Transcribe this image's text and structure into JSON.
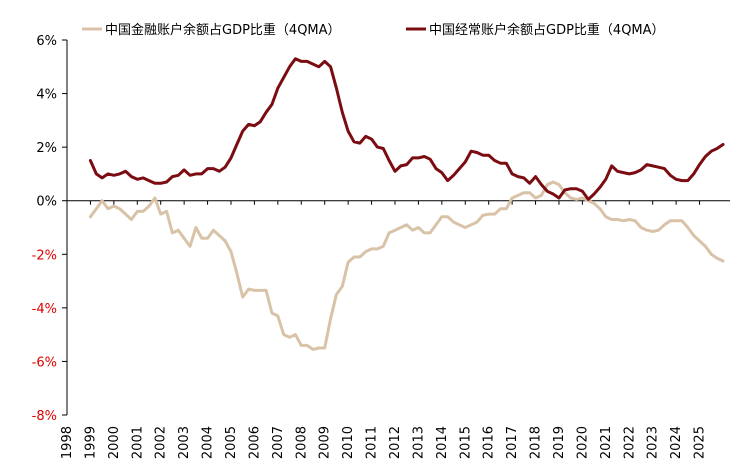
{
  "chart_data": {
    "type": "line",
    "legend_position": "top",
    "grid": false,
    "xlim": [
      1998,
      2026.3
    ],
    "ylim": [
      -8,
      6
    ],
    "y_ticks": [
      6,
      4,
      2,
      0,
      -2,
      -4,
      -6,
      -8
    ],
    "y_tick_labels": [
      "6%",
      "4%",
      "2%",
      "0%",
      "-2%",
      "-4%",
      "-6%",
      "-8%"
    ],
    "x_tick_labels": [
      "1998",
      "1999",
      "2000",
      "2001",
      "2002",
      "2003",
      "2004",
      "2005",
      "2006",
      "2007",
      "2008",
      "2009",
      "2010",
      "2011",
      "2012",
      "2013",
      "2014",
      "2015",
      "2016",
      "2017",
      "2018",
      "2019",
      "2020",
      "2021",
      "2022",
      "2023",
      "2024",
      "2025"
    ],
    "colors": {
      "financial": "#d9c3a8",
      "current": "#7a0c12",
      "negative_tick": "#e00000",
      "axis": "#000000"
    },
    "series": [
      {
        "name": "中国金融账户余额占GDP比重（4QMA）",
        "key": "financial",
        "x": [
          1999.0,
          1999.25,
          1999.5,
          1999.75,
          2000.0,
          2000.25,
          2000.5,
          2000.75,
          2001.0,
          2001.25,
          2001.5,
          2001.75,
          2002.0,
          2002.25,
          2002.5,
          2002.75,
          2003.0,
          2003.25,
          2003.5,
          2003.75,
          2004.0,
          2004.25,
          2004.5,
          2004.75,
          2005.0,
          2005.25,
          2005.5,
          2005.75,
          2006.0,
          2006.25,
          2006.5,
          2006.75,
          2007.0,
          2007.25,
          2007.5,
          2007.75,
          2008.0,
          2008.25,
          2008.5,
          2008.75,
          2009.0,
          2009.25,
          2009.5,
          2009.75,
          2010.0,
          2010.25,
          2010.5,
          2010.75,
          2011.0,
          2011.25,
          2011.5,
          2011.75,
          2012.0,
          2012.25,
          2012.5,
          2012.75,
          2013.0,
          2013.25,
          2013.5,
          2013.75,
          2014.0,
          2014.25,
          2014.5,
          2014.75,
          2015.0,
          2015.25,
          2015.5,
          2015.75,
          2016.0,
          2016.25,
          2016.5,
          2016.75,
          2017.0,
          2017.25,
          2017.5,
          2017.75,
          2018.0,
          2018.25,
          2018.5,
          2018.75,
          2019.0,
          2019.25,
          2019.5,
          2019.75,
          2020.0,
          2020.25,
          2020.5,
          2020.75,
          2021.0,
          2021.25,
          2021.5,
          2021.75,
          2022.0,
          2022.25,
          2022.5,
          2022.75,
          2023.0,
          2023.25,
          2023.5,
          2023.75,
          2024.0,
          2024.25,
          2024.5,
          2024.75,
          2025.0,
          2025.25,
          2025.5,
          2025.75,
          2026.0
        ],
        "values": [
          -0.6,
          -0.3,
          0.0,
          -0.3,
          -0.2,
          -0.3,
          -0.5,
          -0.7,
          -0.4,
          -0.4,
          -0.2,
          0.1,
          -0.5,
          -0.4,
          -1.2,
          -1.1,
          -1.4,
          -1.7,
          -1.0,
          -1.4,
          -1.4,
          -1.1,
          -1.3,
          -1.5,
          -1.9,
          -2.7,
          -3.6,
          -3.3,
          -3.35,
          -3.35,
          -3.35,
          -4.2,
          -4.3,
          -5.0,
          -5.1,
          -5.0,
          -5.4,
          -5.4,
          -5.55,
          -5.5,
          -5.5,
          -4.4,
          -3.5,
          -3.2,
          -2.3,
          -2.1,
          -2.1,
          -1.9,
          -1.8,
          -1.8,
          -1.7,
          -1.2,
          -1.1,
          -1.0,
          -0.9,
          -1.1,
          -1.0,
          -1.2,
          -1.2,
          -0.9,
          -0.6,
          -0.6,
          -0.8,
          -0.9,
          -1.0,
          -0.9,
          -0.8,
          -0.55,
          -0.5,
          -0.5,
          -0.3,
          -0.3,
          0.1,
          0.2,
          0.3,
          0.3,
          0.1,
          0.2,
          0.6,
          0.7,
          0.6,
          0.3,
          0.1,
          0.05,
          0.1,
          0.0,
          -0.1,
          -0.3,
          -0.6,
          -0.7,
          -0.7,
          -0.75,
          -0.7,
          -0.75,
          -1.0,
          -1.1,
          -1.15,
          -1.1,
          -0.9,
          -0.75,
          -0.75,
          -0.75,
          -1.0,
          -1.3,
          -1.5,
          -1.7,
          -2.0,
          -2.15,
          -2.25
        ]
      },
      {
        "name": "中国经常账户余额占GDP比重（4QMA）",
        "key": "current",
        "x": [
          1999.0,
          1999.25,
          1999.5,
          1999.75,
          2000.0,
          2000.25,
          2000.5,
          2000.75,
          2001.0,
          2001.25,
          2001.5,
          2001.75,
          2002.0,
          2002.25,
          2002.5,
          2002.75,
          2003.0,
          2003.25,
          2003.5,
          2003.75,
          2004.0,
          2004.25,
          2004.5,
          2004.75,
          2005.0,
          2005.25,
          2005.5,
          2005.75,
          2006.0,
          2006.25,
          2006.5,
          2006.75,
          2007.0,
          2007.25,
          2007.5,
          2007.75,
          2008.0,
          2008.25,
          2008.5,
          2008.75,
          2009.0,
          2009.25,
          2009.5,
          2009.75,
          2010.0,
          2010.25,
          2010.5,
          2010.75,
          2011.0,
          2011.25,
          2011.5,
          2011.75,
          2012.0,
          2012.25,
          2012.5,
          2012.75,
          2013.0,
          2013.25,
          2013.5,
          2013.75,
          2014.0,
          2014.25,
          2014.5,
          2014.75,
          2015.0,
          2015.25,
          2015.5,
          2015.75,
          2016.0,
          2016.25,
          2016.5,
          2016.75,
          2017.0,
          2017.25,
          2017.5,
          2017.75,
          2018.0,
          2018.25,
          2018.5,
          2018.75,
          2019.0,
          2019.25,
          2019.5,
          2019.75,
          2020.0,
          2020.25,
          2020.5,
          2020.75,
          2021.0,
          2021.25,
          2021.5,
          2021.75,
          2022.0,
          2022.25,
          2022.5,
          2022.75,
          2023.0,
          2023.25,
          2023.5,
          2023.75,
          2024.0,
          2024.25,
          2024.5,
          2024.75,
          2025.0,
          2025.25,
          2025.5,
          2025.75,
          2026.0
        ],
        "values": [
          1.5,
          1.0,
          0.85,
          1.0,
          0.95,
          1.0,
          1.1,
          0.9,
          0.8,
          0.85,
          0.75,
          0.65,
          0.65,
          0.7,
          0.9,
          0.95,
          1.15,
          0.95,
          1.0,
          1.0,
          1.2,
          1.2,
          1.1,
          1.25,
          1.6,
          2.1,
          2.6,
          2.85,
          2.8,
          2.95,
          3.3,
          3.6,
          4.2,
          4.6,
          5.0,
          5.3,
          5.2,
          5.2,
          5.1,
          5.0,
          5.2,
          5.0,
          4.2,
          3.3,
          2.6,
          2.2,
          2.15,
          2.4,
          2.3,
          2.0,
          1.95,
          1.5,
          1.1,
          1.3,
          1.35,
          1.6,
          1.6,
          1.65,
          1.55,
          1.2,
          1.05,
          0.75,
          0.95,
          1.2,
          1.45,
          1.85,
          1.8,
          1.7,
          1.7,
          1.5,
          1.4,
          1.4,
          1.0,
          0.9,
          0.85,
          0.65,
          0.9,
          0.6,
          0.35,
          0.25,
          0.1,
          0.4,
          0.45,
          0.45,
          0.35,
          0.05,
          0.25,
          0.5,
          0.8,
          1.3,
          1.1,
          1.05,
          1.0,
          1.05,
          1.15,
          1.35,
          1.3,
          1.25,
          1.2,
          0.95,
          0.8,
          0.75,
          0.75,
          1.0,
          1.35,
          1.65,
          1.85,
          1.95,
          2.1
        ]
      }
    ]
  }
}
